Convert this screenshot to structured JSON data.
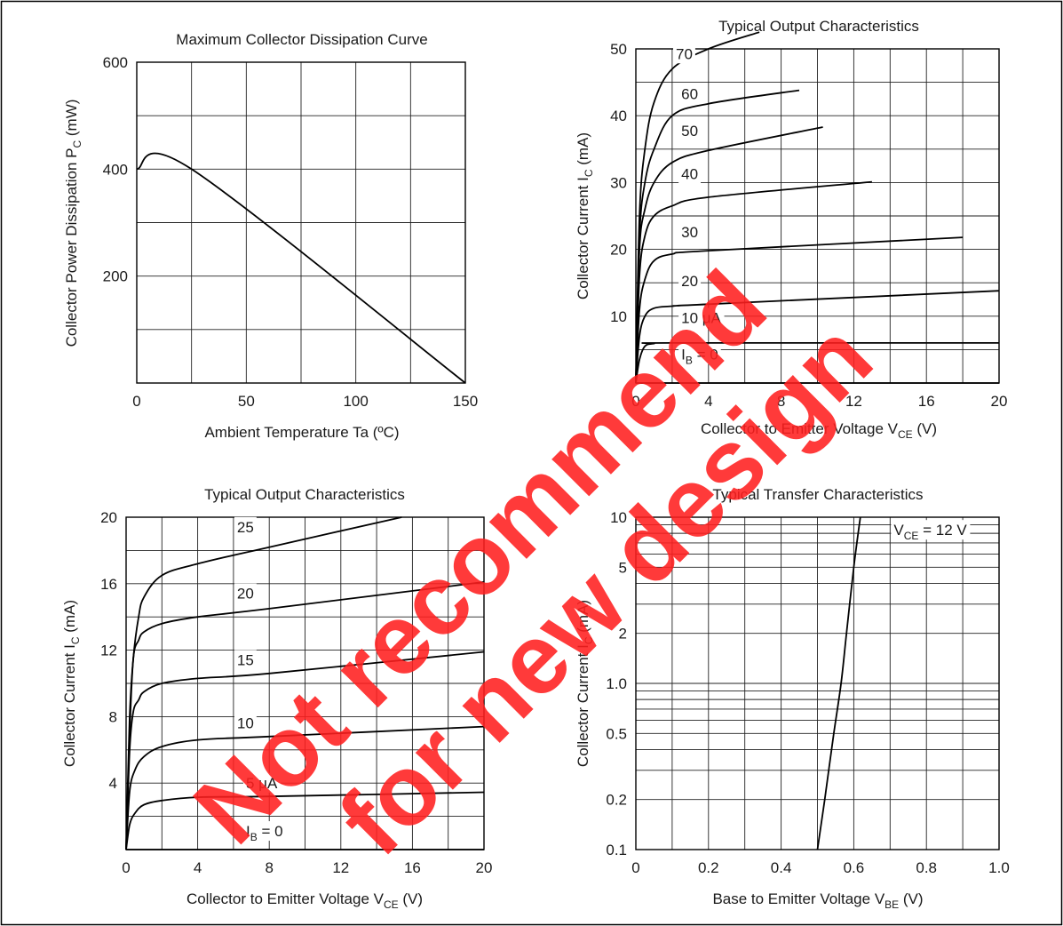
{
  "chart_data": [
    {
      "id": "c1",
      "type": "line",
      "title": "Maximum Collector Dissipation Curve",
      "xlabel": "Ambient Temperature  Ta  (ºC)",
      "ylabel": "Collector Power Dissipation P",
      "ylabel_sub": "C",
      "ylabel_tail": " (mW)",
      "xlim": [
        0,
        150
      ],
      "ylim": [
        0,
        600
      ],
      "xticks": [
        0,
        50,
        100,
        150
      ],
      "yticks": [
        200,
        400,
        600
      ],
      "xtick_labels": [
        "0",
        "50",
        "100",
        "150"
      ],
      "ytick_labels": [
        "200",
        "400",
        "600"
      ],
      "grid": true,
      "series": [
        {
          "points": [
            [
              0,
              400
            ],
            [
              25,
              400
            ],
            [
              150,
              0
            ]
          ]
        }
      ],
      "annotations": []
    },
    {
      "id": "c2",
      "type": "line",
      "title": "Typical Output Characteristics",
      "xlabel": "Collector to Emitter Voltage  V",
      "xlabel_sub": "CE",
      "xlabel_tail": "  (V)",
      "ylabel": "Collector Current  I",
      "ylabel_sub": "C",
      "ylabel_tail": "  (mA)",
      "xlim": [
        0,
        20
      ],
      "ylim": [
        0,
        50
      ],
      "xticks": [
        0,
        4,
        8,
        12,
        16,
        20
      ],
      "yticks": [
        10,
        20,
        30,
        40,
        50
      ],
      "xtick_labels": [
        "0",
        "4",
        "8",
        "12",
        "16",
        "20"
      ],
      "ytick_labels": [
        "10",
        "20",
        "30",
        "40",
        "50"
      ],
      "grid": true,
      "series": [
        {
          "name": "70",
          "points": [
            [
              0,
              0
            ],
            [
              0.2,
              25
            ],
            [
              0.5,
              35
            ],
            [
              1,
              42
            ],
            [
              2,
              47
            ],
            [
              4,
              50
            ],
            [
              6.8,
              52.5
            ]
          ]
        },
        {
          "name": "60",
          "points": [
            [
              0,
              0
            ],
            [
              0.2,
              22
            ],
            [
              0.5,
              30
            ],
            [
              1,
              35
            ],
            [
              2,
              40
            ],
            [
              4,
              41.8
            ],
            [
              9,
              43.8
            ]
          ]
        },
        {
          "name": "50",
          "points": [
            [
              0,
              0
            ],
            [
              0.2,
              20
            ],
            [
              0.5,
              26
            ],
            [
              1,
              30
            ],
            [
              2,
              33
            ],
            [
              4,
              34.8
            ],
            [
              10.3,
              38.3
            ]
          ]
        },
        {
          "name": "40",
          "points": [
            [
              0,
              0
            ],
            [
              0.2,
              16
            ],
            [
              0.5,
              22
            ],
            [
              1,
              25
            ],
            [
              2,
              26.5
            ],
            [
              4,
              27.8
            ],
            [
              13,
              30.1
            ]
          ]
        },
        {
          "name": "30",
          "points": [
            [
              0,
              0
            ],
            [
              0.2,
              11
            ],
            [
              0.5,
              15.5
            ],
            [
              1,
              18.3
            ],
            [
              2,
              19.3
            ],
            [
              4,
              19.8
            ],
            [
              18,
              21.8
            ]
          ]
        },
        {
          "name": "20",
          "points": [
            [
              0,
              0
            ],
            [
              0.2,
              7
            ],
            [
              0.5,
              10
            ],
            [
              1,
              11.2
            ],
            [
              2,
              11.5
            ],
            [
              4,
              11.8
            ],
            [
              20,
              13.8
            ]
          ]
        },
        {
          "name": "10 μA",
          "points": [
            [
              0,
              0
            ],
            [
              0.2,
              3.5
            ],
            [
              0.5,
              5.5
            ],
            [
              1,
              5.9
            ],
            [
              2,
              6
            ],
            [
              20,
              6
            ]
          ]
        },
        {
          "name": "I_B = 0",
          "points": [
            [
              0,
              0
            ],
            [
              20,
              0
            ]
          ]
        }
      ],
      "annotations": [
        {
          "text": "70",
          "x": 2.2,
          "y": 48.5
        },
        {
          "text": "60",
          "x": 2.5,
          "y": 42.5
        },
        {
          "text": "50",
          "x": 2.5,
          "y": 37
        },
        {
          "text": "40",
          "x": 2.5,
          "y": 30.5
        },
        {
          "text": "30",
          "x": 2.5,
          "y": 21.8
        },
        {
          "text": "20",
          "x": 2.5,
          "y": 14.5
        },
        {
          "text": "10 μA",
          "x": 2.5,
          "y": 9
        },
        {
          "text": "I",
          "sub": "B",
          "tail": " = 0",
          "x": 2.5,
          "y": 3.5
        }
      ]
    },
    {
      "id": "c3",
      "type": "line",
      "title": "Typical Output Characteristics",
      "xlabel": "Collector to Emitter Voltage  V",
      "xlabel_sub": "CE",
      "xlabel_tail": "  (V)",
      "ylabel": "Collector Current  I",
      "ylabel_sub": "C",
      "ylabel_tail": "  (mA)",
      "xlim": [
        0,
        20
      ],
      "ylim": [
        0,
        20
      ],
      "xticks": [
        0,
        4,
        8,
        12,
        16,
        20
      ],
      "yticks": [
        4,
        8,
        12,
        16,
        20
      ],
      "xtick_labels": [
        "0",
        "4",
        "8",
        "12",
        "16",
        "20"
      ],
      "ytick_labels": [
        "4",
        "8",
        "12",
        "16",
        "20"
      ],
      "grid": true,
      "series": [
        {
          "name": "25",
          "points": [
            [
              0,
              0
            ],
            [
              0.2,
              8
            ],
            [
              0.4,
              11.5
            ],
            [
              0.7,
              14
            ],
            [
              1,
              15.2
            ],
            [
              2,
              16.5
            ],
            [
              4,
              17.2
            ],
            [
              8,
              18.2
            ],
            [
              15.4,
              20
            ]
          ]
        },
        {
          "name": "20",
          "points": [
            [
              0,
              0
            ],
            [
              0.2,
              7
            ],
            [
              0.4,
              11.5
            ],
            [
              0.7,
              12.6
            ],
            [
              1,
              13.1
            ],
            [
              2,
              13.6
            ],
            [
              4,
              14
            ],
            [
              8,
              14.5
            ],
            [
              20,
              16.1
            ]
          ]
        },
        {
          "name": "15",
          "points": [
            [
              0,
              0
            ],
            [
              0.2,
              6
            ],
            [
              0.4,
              8.3
            ],
            [
              0.7,
              9
            ],
            [
              1,
              9.5
            ],
            [
              2,
              10
            ],
            [
              4,
              10.3
            ],
            [
              8,
              10.6
            ],
            [
              20,
              11.9
            ]
          ]
        },
        {
          "name": "10",
          "points": [
            [
              0,
              0
            ],
            [
              0.2,
              3.5
            ],
            [
              0.5,
              4.8
            ],
            [
              1,
              5.6
            ],
            [
              2,
              6.2
            ],
            [
              4,
              6.6
            ],
            [
              8,
              6.8
            ],
            [
              20,
              7.4
            ]
          ]
        },
        {
          "name": "5 μA",
          "points": [
            [
              0,
              0
            ],
            [
              0.2,
              1.5
            ],
            [
              0.5,
              2.2
            ],
            [
              1,
              2.7
            ],
            [
              2,
              2.95
            ],
            [
              4,
              3.15
            ],
            [
              8,
              3.2
            ],
            [
              20,
              3.45
            ]
          ]
        },
        {
          "name": "I_B = 0",
          "points": [
            [
              0,
              0
            ],
            [
              20,
              0
            ]
          ]
        }
      ],
      "annotations": [
        {
          "text": "25",
          "x": 6.2,
          "y": 19.1
        },
        {
          "text": "20",
          "x": 6.2,
          "y": 15.1
        },
        {
          "text": "15",
          "x": 6.2,
          "y": 11.1
        },
        {
          "text": "10",
          "x": 6.2,
          "y": 7.3
        },
        {
          "text": "5 μA",
          "x": 6.7,
          "y": 3.7
        },
        {
          "text": "I",
          "sub": "B",
          "tail": " = 0",
          "x": 6.7,
          "y": 0.8
        }
      ]
    },
    {
      "id": "c4",
      "type": "line",
      "title": "Typical Transfer Characteristics",
      "xlabel": "Base to Emitter Voltage  V",
      "xlabel_sub": "BE",
      "xlabel_tail": "  (V)",
      "ylabel": "Collector Current  I",
      "ylabel_sub": "C",
      "ylabel_tail": "  (mA)",
      "xlim": [
        0,
        1.0
      ],
      "ylim": [
        0.1,
        10
      ],
      "yscale": "log",
      "xticks": [
        0,
        0.2,
        0.4,
        0.6,
        0.8,
        1.0
      ],
      "yticks": [
        0.1,
        0.2,
        0.5,
        1.0,
        2,
        5,
        10
      ],
      "xtick_labels": [
        "0",
        "0.2",
        "0.4",
        "0.6",
        "0.8",
        "1.0"
      ],
      "ytick_labels": [
        "0.1",
        "0.2",
        "0.5",
        "1.0",
        "2",
        "5",
        "10"
      ],
      "grid": true,
      "series": [
        {
          "points": [
            [
              0.5,
              0.1
            ],
            [
              0.52,
              0.2
            ],
            [
              0.545,
              0.5
            ],
            [
              0.565,
              1.0
            ],
            [
              0.58,
              2
            ],
            [
              0.6,
              5
            ],
            [
              0.618,
              10
            ]
          ]
        }
      ],
      "annotations": [
        {
          "text": "V",
          "sub": "CE",
          "tail": " = 12 V",
          "x": 0.71,
          "y": 7.8
        }
      ]
    }
  ],
  "watermark": {
    "line1": "Not recommend",
    "line2": "for new design",
    "color": "#ff1f1f"
  }
}
